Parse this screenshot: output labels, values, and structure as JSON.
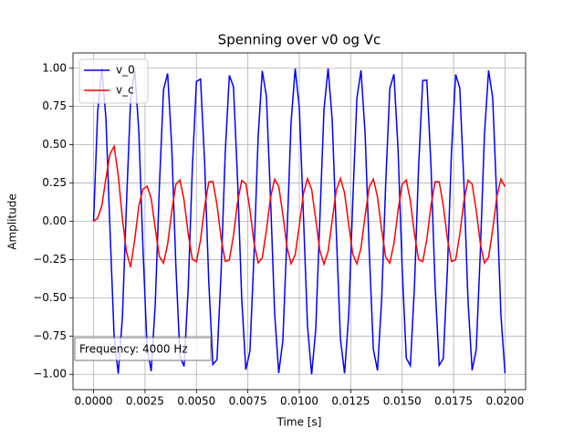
{
  "chart_data": {
    "type": "line",
    "title": "Spenning over v0 og Vc",
    "xlabel": "Time [s]",
    "ylabel": "Amplitude",
    "annotation": "Frequency: 4000 Hz",
    "legend": "upper left",
    "grid": true,
    "xlim": [
      -0.001,
      0.021
    ],
    "ylim": [
      -1.1,
      1.1
    ],
    "xticks": [
      {
        "value": 0,
        "label": "0.0000"
      },
      {
        "value": 0.0025,
        "label": "0.0025"
      },
      {
        "value": 0.005,
        "label": "0.0050"
      },
      {
        "value": 0.0075,
        "label": "0.0075"
      },
      {
        "value": 0.01,
        "label": "0.0100"
      },
      {
        "value": 0.0125,
        "label": "0.0125"
      },
      {
        "value": 0.015,
        "label": "0.0150"
      },
      {
        "value": 0.0175,
        "label": "0.0175"
      },
      {
        "value": 0.02,
        "label": "0.0200"
      }
    ],
    "yticks": [
      {
        "value": -1,
        "label": "−1.00"
      },
      {
        "value": -0.75,
        "label": "−0.75"
      },
      {
        "value": -0.5,
        "label": "−0.50"
      },
      {
        "value": -0.25,
        "label": "−0.25"
      },
      {
        "value": 0,
        "label": "0.00"
      },
      {
        "value": 0.25,
        "label": "0.25"
      },
      {
        "value": 0.5,
        "label": "0.50"
      },
      {
        "value": 0.75,
        "label": "0.75"
      },
      {
        "value": 1,
        "label": "1.00"
      }
    ],
    "x": [
      0,
      0.0002,
      0.0004,
      0.0006,
      0.0008,
      0.001,
      0.0012,
      0.0014,
      0.0016,
      0.0018,
      0.002,
      0.0022,
      0.0024,
      0.0026,
      0.0028,
      0.003,
      0.0032,
      0.0034,
      0.0036,
      0.0038,
      0.004,
      0.0042,
      0.0044,
      0.0046,
      0.0048,
      0.005,
      0.0052,
      0.0054,
      0.0056,
      0.0058,
      0.006,
      0.0062,
      0.0064,
      0.0066,
      0.0068,
      0.007,
      0.0072,
      0.0074,
      0.0076,
      0.0078,
      0.008,
      0.0082,
      0.0084,
      0.0086,
      0.0088,
      0.009,
      0.0092,
      0.0094,
      0.0096,
      0.0098,
      0.01,
      0.0102,
      0.0104,
      0.0106,
      0.0108,
      0.011,
      0.0112,
      0.0114,
      0.0116,
      0.0118,
      0.012,
      0.0122,
      0.0124,
      0.0126,
      0.0128,
      0.013,
      0.0132,
      0.0134,
      0.0136,
      0.0138,
      0.014,
      0.0142,
      0.0144,
      0.0146,
      0.0148,
      0.015,
      0.0152,
      0.0154,
      0.0156,
      0.0158,
      0.016,
      0.0162,
      0.0164,
      0.0166,
      0.0168,
      0.017,
      0.0172,
      0.0174,
      0.0176,
      0.0178,
      0.018,
      0.0182,
      0.0184,
      0.0186,
      0.0188,
      0.019,
      0.0192,
      0.0194,
      0.0196,
      0.0198,
      0.02
    ],
    "series": [
      {
        "name": "v_0",
        "color": "#0000ff",
        "values": [
          0,
          0.717,
          1.0,
          0.675,
          -0.058,
          -0.757,
          -0.996,
          -0.631,
          0.117,
          0.794,
          0.989,
          0.585,
          -0.174,
          -0.826,
          -0.979,
          -0.537,
          0.231,
          0.859,
          0.966,
          0.487,
          -0.289,
          -0.886,
          -0.948,
          -0.435,
          0.343,
          0.913,
          0.929,
          0.381,
          -0.398,
          -0.936,
          -0.904,
          -0.327,
          0.45,
          0.954,
          0.879,
          0.27,
          -0.502,
          -0.97,
          -0.85,
          -0.214,
          0.551,
          0.983,
          0.818,
          0.157,
          -0.598,
          -0.992,
          -0.781,
          -0.099,
          0.645,
          0.998,
          0.745,
          0.041,
          -0.688,
          -1.0,
          -0.705,
          0.018,
          0.73,
          0.999,
          0.662,
          -0.076,
          -0.768,
          -0.994,
          -0.617,
          0.134,
          0.804,
          0.987,
          0.57,
          -0.192,
          -0.836,
          -0.975,
          -0.522,
          0.249,
          0.868,
          0.961,
          0.471,
          -0.305,
          -0.894,
          -0.943,
          -0.419,
          0.36,
          0.92,
          0.922,
          0.364,
          -0.414,
          -0.941,
          -0.897,
          -0.31,
          0.466,
          0.959,
          0.871,
          0.254,
          -0.517,
          -0.974,
          -0.84,
          -0.197,
          0.566,
          0.986,
          0.807,
          0.14,
          -0.612,
          -0.994
        ]
      },
      {
        "name": "v_c",
        "color": "#ff0000",
        "values": [
          0,
          0.02,
          0.1,
          0.28,
          0.44,
          0.49,
          0.3,
          0.02,
          -0.2,
          -0.3,
          -0.12,
          0.1,
          0.21,
          0.23,
          0.15,
          -0.049,
          -0.231,
          -0.274,
          -0.15,
          0.065,
          0.241,
          0.27,
          0.136,
          -0.081,
          -0.248,
          -0.265,
          -0.122,
          0.096,
          0.256,
          0.26,
          0.107,
          -0.111,
          -0.262,
          -0.253,
          -0.092,
          0.126,
          0.267,
          0.246,
          0.076,
          -0.141,
          -0.272,
          -0.238,
          -0.06,
          0.154,
          0.275,
          0.229,
          0.044,
          -0.167,
          -0.278,
          -0.219,
          -0.028,
          0.181,
          0.279,
          0.209,
          0.011,
          -0.193,
          -0.28,
          -0.197,
          0.005,
          0.204,
          0.28,
          0.185,
          -0.021,
          -0.215,
          -0.278,
          -0.173,
          0.038,
          0.225,
          0.276,
          0.16,
          -0.054,
          -0.234,
          -0.273,
          -0.146,
          0.07,
          0.243,
          0.269,
          0.132,
          -0.085,
          -0.25,
          -0.264,
          -0.117,
          0.101,
          0.258,
          0.258,
          0.102,
          -0.116,
          -0.263,
          -0.251,
          -0.087,
          0.13,
          0.269,
          0.244,
          0.071,
          -0.145,
          -0.273,
          -0.235,
          -0.055,
          0.158,
          0.276,
          0.226
        ]
      }
    ]
  }
}
